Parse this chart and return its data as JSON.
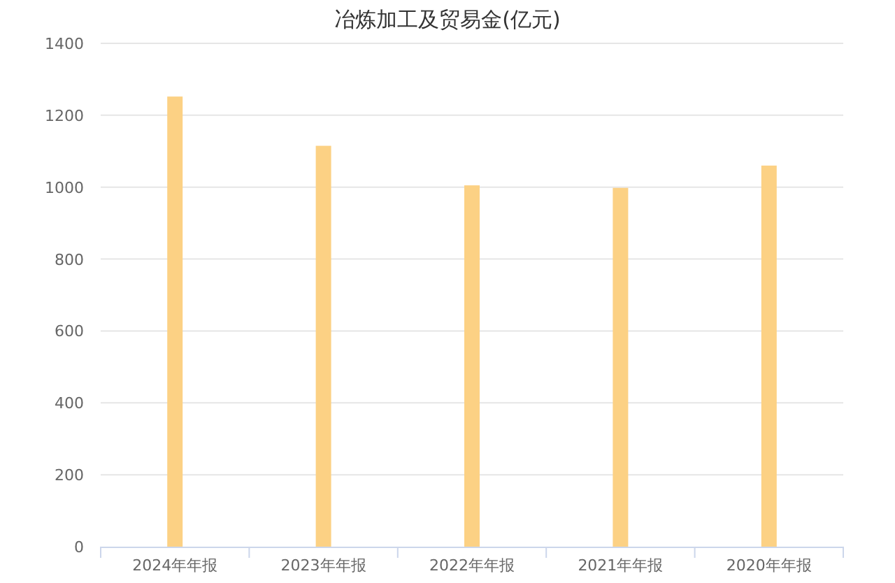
{
  "chart_data": {
    "type": "bar",
    "title": "冶炼加工及贸易金(亿元)",
    "categories": [
      "2024年年报",
      "2023年年报",
      "2022年年报",
      "2021年年报",
      "2020年年报"
    ],
    "values": [
      1252,
      1115,
      1005,
      998,
      1060
    ],
    "color": "#fcd184",
    "ylim": [
      0,
      1400
    ],
    "yticks": [
      0,
      200,
      400,
      600,
      800,
      1000,
      1200,
      1400
    ],
    "grid": "y"
  }
}
